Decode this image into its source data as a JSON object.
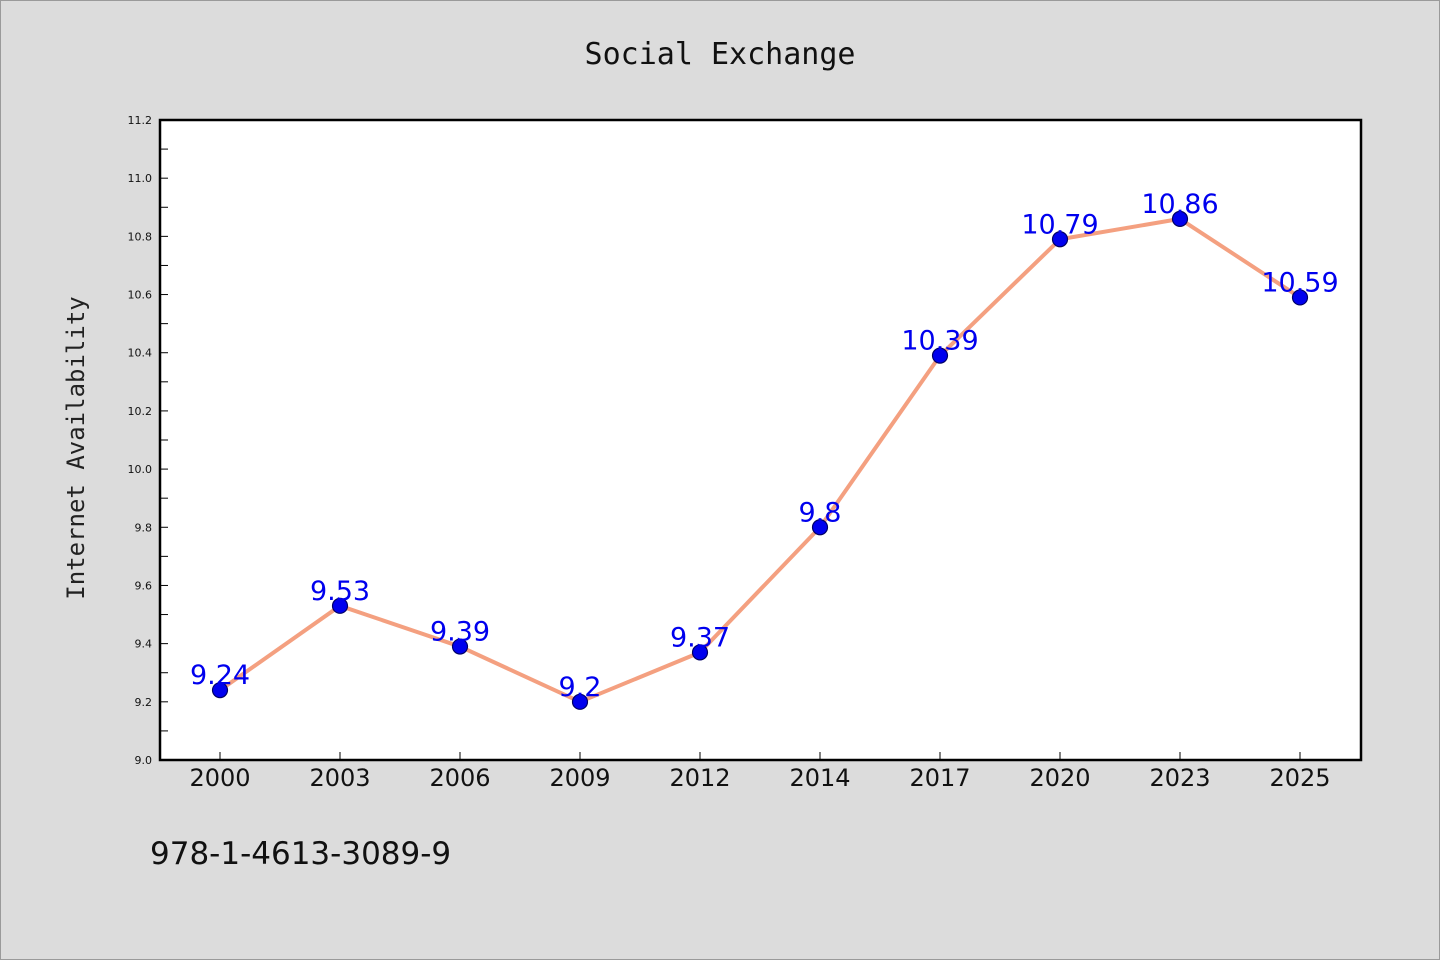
{
  "chart_data": {
    "type": "line",
    "title": "Social Exchange",
    "xlabel": "",
    "ylabel": "Internet Availability",
    "categories": [
      "2000",
      "2003",
      "2006",
      "2009",
      "2012",
      "2014",
      "2017",
      "2020",
      "2023",
      "2025"
    ],
    "series": [
      {
        "values": [
          9.24,
          9.53,
          9.39,
          9.2,
          9.37,
          9.8,
          10.39,
          10.79,
          10.86,
          10.59
        ],
        "data_labels": [
          "9.24",
          "9.53",
          "9.39",
          "9.2",
          "9.37",
          "9.8",
          "10.39",
          "10.79",
          "10.86",
          "10.59"
        ]
      }
    ],
    "ylim": [
      9.0,
      11.2
    ],
    "yticks": [
      "9.0",
      "9.2",
      "9.4",
      "9.6",
      "9.8",
      "10.0",
      "10.2",
      "10.4",
      "10.6",
      "10.8",
      "11.0",
      "11.2"
    ],
    "grid": false,
    "colors": {
      "line": "#f4a080",
      "marker": "#0000ee",
      "marker_edge": "#000066",
      "data_label": "#0000ee",
      "plot_background": "#ffffff",
      "figure_background": "#dcdcdc"
    }
  },
  "footer": {
    "isbn": "978-1-4613-3089-9"
  }
}
